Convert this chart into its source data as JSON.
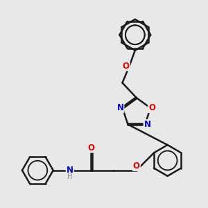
{
  "bg_color": "#e8e8e8",
  "bond_color": "#1a1a1a",
  "bond_width": 1.8,
  "atom_colors": {
    "O": "#e00000",
    "N": "#0000cc",
    "H": "#888888",
    "C": "#1a1a1a"
  },
  "font_size_atom": 8.5,
  "font_size_h": 7.0,
  "ring_r": 0.55,
  "inner_ring_ratio": 0.62
}
